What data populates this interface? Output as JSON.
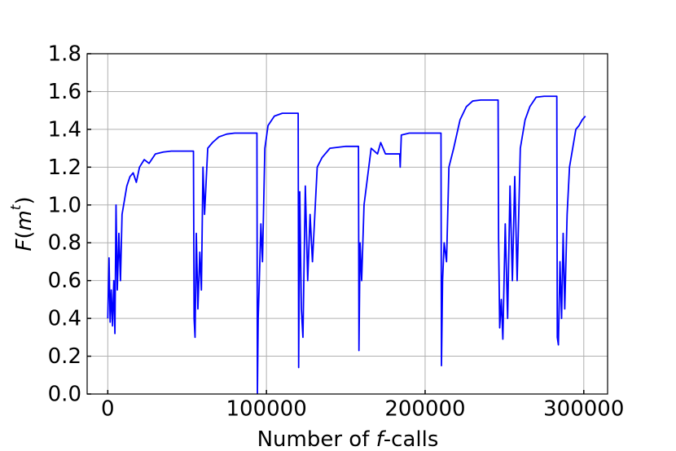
{
  "chart_data": {
    "type": "line",
    "xlabel_parts": [
      "Number of ",
      "f",
      "-calls"
    ],
    "ylabel_parts": [
      "F",
      "(",
      "m",
      "t",
      ")"
    ],
    "x": [
      0,
      800,
      1500,
      2200,
      3000,
      3800,
      4500,
      5200,
      6000,
      7000,
      8000,
      9000,
      10000,
      12000,
      14000,
      16000,
      18000,
      20000,
      23000,
      26000,
      30000,
      35000,
      40000,
      54000,
      54400,
      55000,
      55800,
      56800,
      58000,
      59000,
      60000,
      61000,
      63000,
      66000,
      70000,
      75000,
      80000,
      94000,
      94300,
      94800,
      95500,
      96500,
      97500,
      99000,
      101000,
      105000,
      110000,
      120000,
      120300,
      121000,
      122000,
      123000,
      124500,
      126000,
      127500,
      129000,
      132000,
      135000,
      140000,
      150000,
      158000,
      158300,
      159000,
      160000,
      161500,
      163000,
      166000,
      170000,
      172000,
      175000,
      180000,
      184000,
      184300,
      185000,
      190000,
      210000,
      210300,
      211000,
      212000,
      213500,
      215000,
      218000,
      222000,
      226000,
      230000,
      235000,
      246000,
      246300,
      247000,
      248000,
      249000,
      250500,
      252000,
      253500,
      255000,
      256500,
      258000,
      260000,
      263000,
      266000,
      270000,
      275000,
      283000,
      283300,
      284000,
      285000,
      286000,
      287000,
      288000,
      289500,
      291000,
      293000,
      295000,
      297000,
      299000,
      301000
    ],
    "series": [
      {
        "color": "#0000ff",
        "values": [
          0.4,
          0.72,
          0.38,
          0.55,
          0.36,
          0.6,
          0.32,
          1.0,
          0.55,
          0.85,
          0.6,
          0.95,
          1.0,
          1.1,
          1.15,
          1.17,
          1.12,
          1.2,
          1.24,
          1.22,
          1.27,
          1.28,
          1.285,
          1.285,
          0.4,
          0.3,
          0.85,
          0.45,
          0.75,
          0.55,
          1.2,
          0.95,
          1.3,
          1.33,
          1.36,
          1.375,
          1.38,
          1.38,
          0.0,
          0.4,
          0.6,
          0.9,
          0.7,
          1.3,
          1.42,
          1.47,
          1.485,
          1.485,
          0.14,
          1.07,
          0.45,
          0.3,
          1.1,
          0.6,
          0.95,
          0.7,
          1.2,
          1.25,
          1.3,
          1.31,
          1.31,
          0.23,
          0.8,
          0.6,
          1.0,
          1.1,
          1.3,
          1.27,
          1.33,
          1.27,
          1.27,
          1.27,
          1.2,
          1.37,
          1.38,
          1.38,
          0.15,
          0.6,
          0.8,
          0.7,
          1.2,
          1.3,
          1.45,
          1.52,
          1.55,
          1.555,
          1.555,
          0.82,
          0.35,
          0.5,
          0.29,
          0.9,
          0.4,
          1.1,
          0.6,
          1.15,
          0.6,
          1.3,
          1.45,
          1.52,
          1.57,
          1.575,
          1.575,
          0.3,
          0.26,
          0.7,
          0.4,
          0.85,
          0.45,
          0.95,
          1.2,
          1.3,
          1.4,
          1.42,
          1.45,
          1.47
        ]
      }
    ],
    "xlim": [
      -13000,
      315000
    ],
    "xticks": [
      0,
      100000,
      200000,
      300000
    ],
    "ylim": [
      0,
      1.8
    ],
    "yticks": [
      {
        "value": 0,
        "label": "0.0"
      },
      {
        "value": 0.2,
        "label": "0.2"
      },
      {
        "value": 0.4,
        "label": "0.4"
      },
      {
        "value": 0.6,
        "label": "0.6"
      },
      {
        "value": 0.8,
        "label": "0.8"
      },
      {
        "value": 1.0,
        "label": "1.0"
      },
      {
        "value": 1.2,
        "label": "1.2"
      },
      {
        "value": 1.4,
        "label": "1.4"
      },
      {
        "value": 1.6,
        "label": "1.6"
      },
      {
        "value": 1.8,
        "label": "1.8"
      }
    ],
    "grid": true
  }
}
